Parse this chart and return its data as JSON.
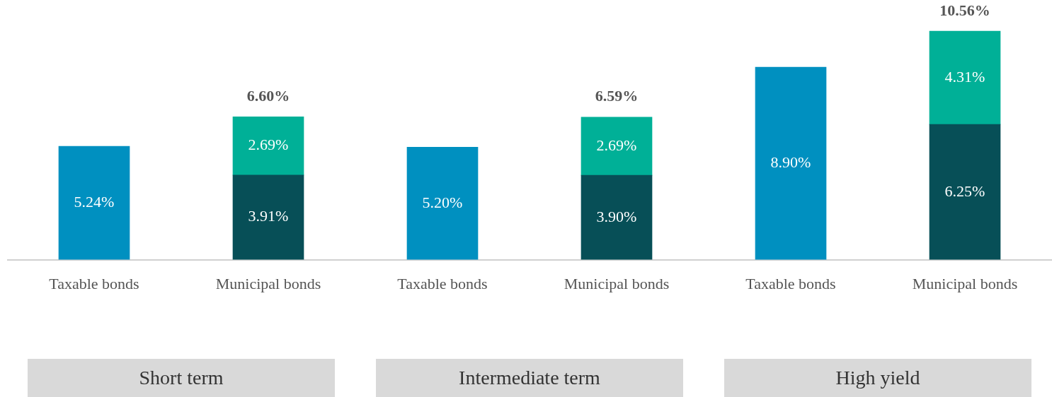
{
  "chart_data": {
    "type": "bar",
    "stacked": true,
    "categories": [
      "Taxable bonds",
      "Municipal bonds",
      "Taxable bonds",
      "Municipal bonds",
      "Taxable bonds",
      "Municipal bonds"
    ],
    "series": [
      {
        "color": "#0090c0",
        "values": [
          5.24,
          null,
          5.2,
          null,
          8.9,
          null
        ],
        "value_labels": [
          "5.24%",
          null,
          "5.20%",
          null,
          "8.90%",
          null
        ]
      },
      {
        "color": "#074f57",
        "values": [
          null,
          3.91,
          null,
          3.9,
          null,
          6.25
        ],
        "value_labels": [
          null,
          "3.91%",
          null,
          "3.90%",
          null,
          "6.25%"
        ]
      },
      {
        "color": "#00b097",
        "values": [
          null,
          2.69,
          null,
          2.69,
          null,
          4.31
        ],
        "value_labels": [
          null,
          "2.69%",
          null,
          "2.69%",
          null,
          "4.31%"
        ]
      }
    ],
    "totals": [
      null,
      "6.60%",
      null,
      "6.59%",
      null,
      "10.56%"
    ],
    "annotations": [
      "Short term",
      "Intermediate term",
      "High yield"
    ],
    "grid": false,
    "legend": false,
    "tick_labels": "x"
  }
}
